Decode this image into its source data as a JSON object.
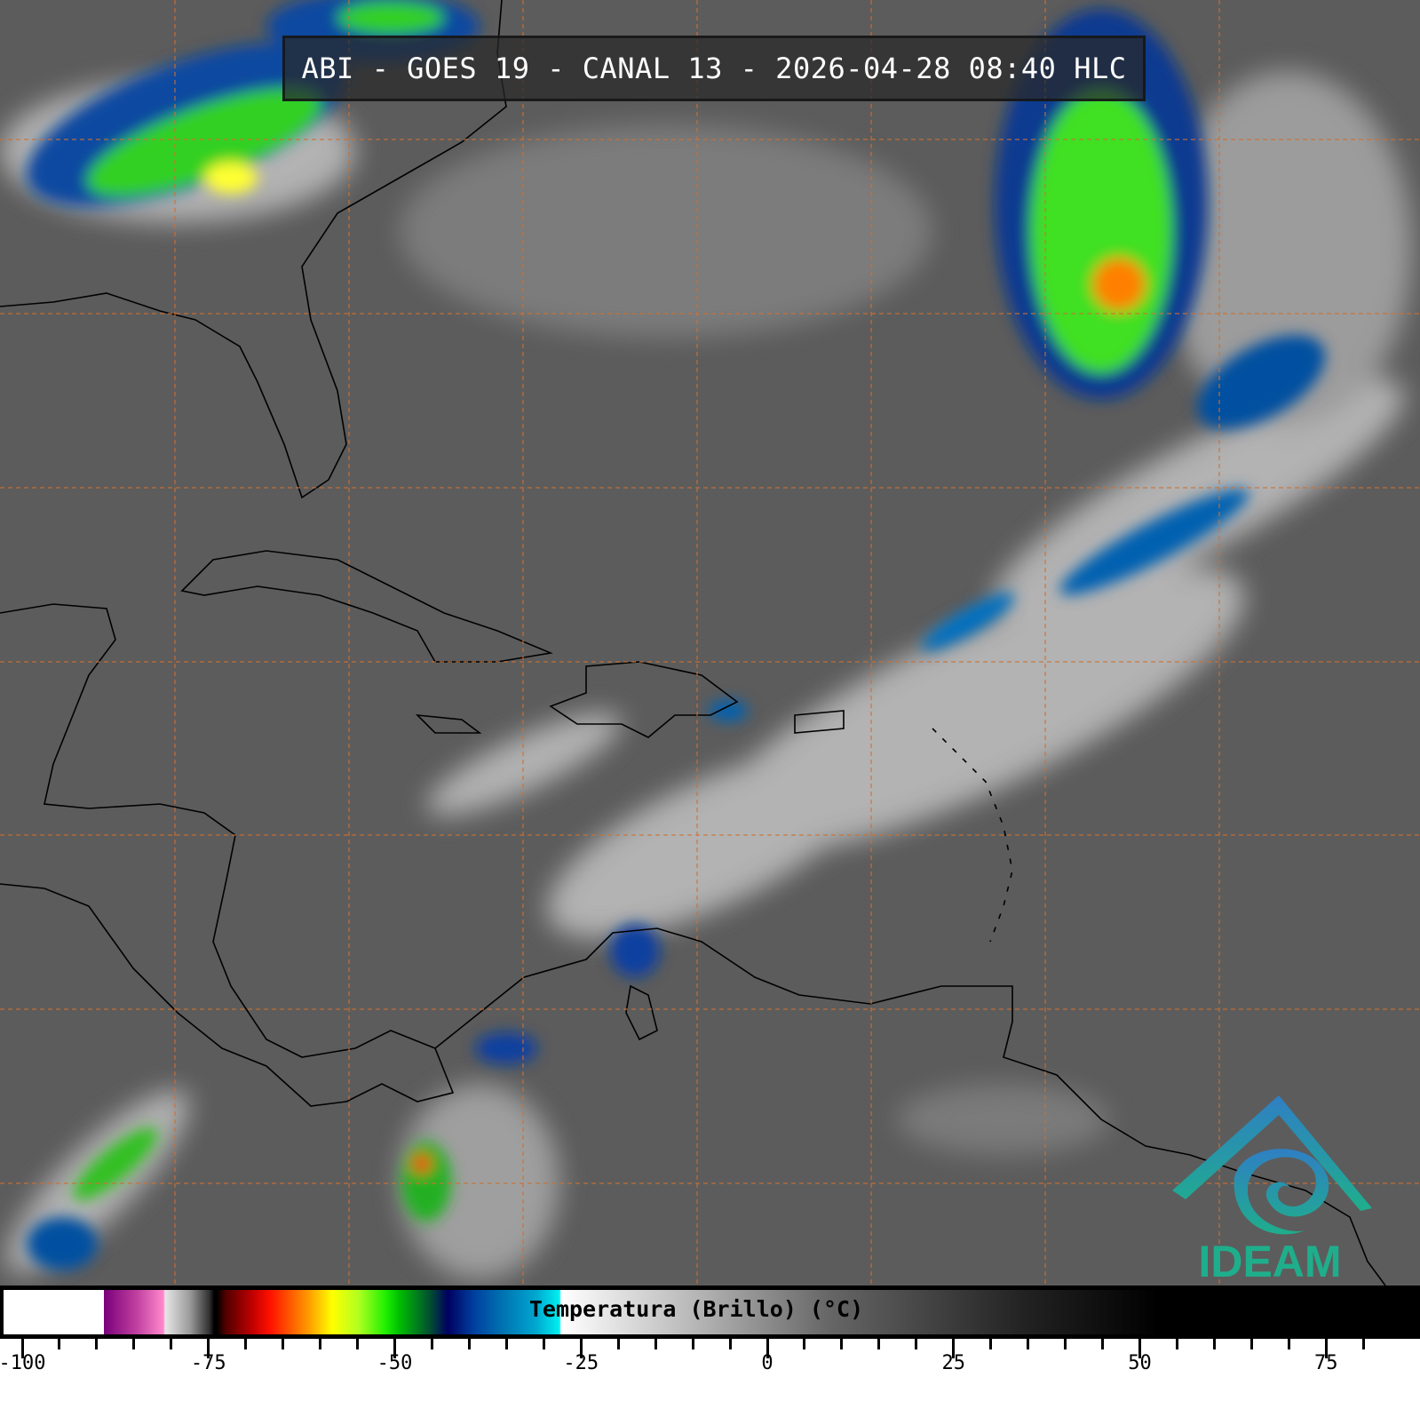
{
  "title": "ABI - GOES 19 - CANAL 13 - 2026-04-28 08:40 HLC",
  "logo": {
    "text": "IDEAM",
    "color": "#1fae8c",
    "accent": "#2f7fc4"
  },
  "colorbar": {
    "label": "Temperatura (Brillo) (°C)",
    "range": [
      -102,
      84
    ],
    "major_ticks": [
      "-100",
      "-75",
      "-50",
      "-25",
      "0",
      "25",
      "50",
      "75"
    ],
    "minor_step": 5,
    "colors": {
      "coldest": "#ffffff",
      "purple": "#7a007a",
      "pink": "#ff88cc",
      "red": "#ff1000",
      "yellow": "#ffff00",
      "green": "#20f000",
      "navy": "#000060",
      "cyan": "#00f0f0",
      "warm": "#000000"
    }
  },
  "map": {
    "background": "#5c5c5c",
    "grid_color": "#d07030",
    "coast_color": "#000000"
  }
}
